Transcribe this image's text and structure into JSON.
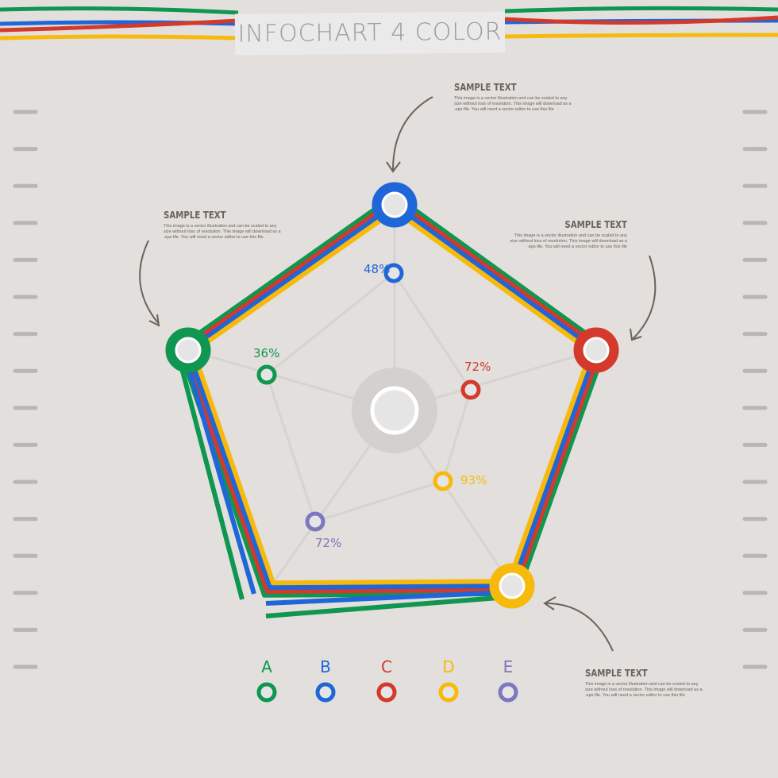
{
  "title": "INFOCHART 4 COLOR",
  "notes": [
    {
      "heading": "SAMPLE TEXT",
      "body": "This image is a vector illustration and can be scaled to any size without loss of resolution. This image will download as a .eps file. You will need a vector editor to use this file"
    },
    {
      "heading": "SAMPLE TEXT",
      "body": "This image is a vector illustration and can be scaled to any size without loss of resolution. This image will download as a .eps file. You will need a vector editor to use this file"
    },
    {
      "heading": "SAMPLE TEXT",
      "body": "This image is a vector illustration and can be scaled to any size without loss of resolution. This image will download as a .eps file. You will need a vector editor to use this file"
    },
    {
      "heading": "SAMPLE TEXT",
      "body": "This image is a vector illustration and can be scaled to any size without loss of resolution. This image will download as a .eps file. You will need a vector editor to use this file"
    }
  ],
  "colors": {
    "green": "#0f9650",
    "blue": "#1f66d8",
    "red": "#d33a2c",
    "yellow": "#f8b90d",
    "purple": "#7b78bf",
    "grey": "#d3d0cd"
  },
  "chart_data": {
    "type": "radar",
    "categories": [
      "A",
      "B",
      "C",
      "D",
      "E"
    ],
    "values": [
      36,
      48,
      72,
      93,
      72
    ],
    "value_labels": [
      "36%",
      "48%",
      "72%",
      "93%",
      "72%"
    ],
    "series_colors": [
      "#0f9650",
      "#1f66d8",
      "#d33a2c",
      "#f8b90d",
      "#7b78bf"
    ]
  },
  "legend": [
    "A",
    "B",
    "C",
    "D",
    "E"
  ]
}
